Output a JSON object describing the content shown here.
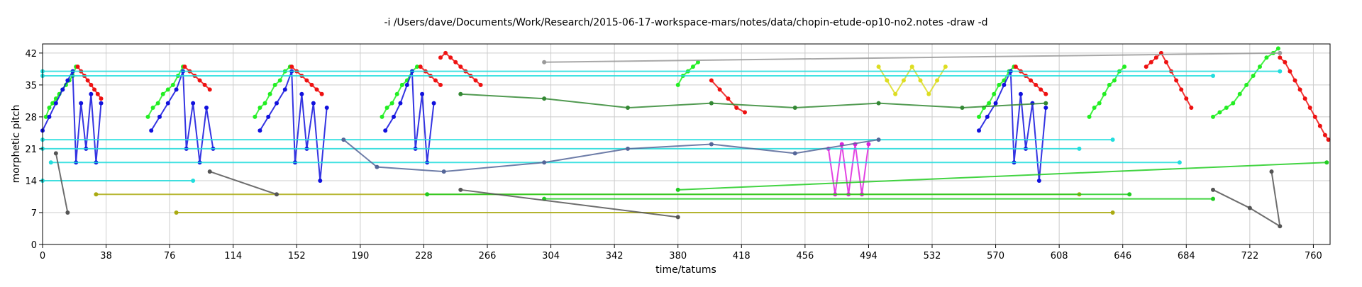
{
  "chart_data": {
    "type": "scatter",
    "title": "-i /Users/dave/Documents/Work/Research/2015-06-17-workspace-mars/notes/data/chopin-etude-op10-no2.notes -draw -d",
    "xlabel": "time/tatums",
    "ylabel": "morphetic pitch",
    "xlim": [
      0,
      770
    ],
    "ylim": [
      0,
      44
    ],
    "xticks": [
      0,
      38,
      76,
      114,
      152,
      190,
      228,
      266,
      304,
      342,
      380,
      418,
      456,
      494,
      532,
      570,
      608,
      646,
      684,
      722,
      760
    ],
    "yticks": [
      0,
      7,
      14,
      21,
      28,
      35,
      42
    ],
    "grid": true,
    "legend": "none",
    "point_colors": {
      "ascending": "#22ee22",
      "descending": "#ee1111",
      "bass": "#1111dd",
      "sustained": "#22dddd",
      "chromatic": "#dd22dd",
      "inner": "#aaaa11",
      "misc": "#555555"
    },
    "series": [
      {
        "color": "#22ee22",
        "points": [
          [
            2,
            28
          ],
          [
            4,
            30
          ],
          [
            6,
            31
          ],
          [
            8,
            32
          ],
          [
            10,
            33
          ],
          [
            12,
            34
          ],
          [
            14,
            35
          ],
          [
            16,
            36
          ],
          [
            18,
            37
          ],
          [
            20,
            39
          ]
        ]
      },
      {
        "color": "#ee1111",
        "points": [
          [
            21,
            39
          ],
          [
            23,
            38
          ],
          [
            25,
            37
          ],
          [
            27,
            36
          ],
          [
            29,
            35
          ],
          [
            31,
            34
          ],
          [
            33,
            33
          ],
          [
            35,
            32
          ]
        ]
      },
      {
        "color": "#1111dd",
        "points": [
          [
            0,
            25
          ],
          [
            4,
            28
          ],
          [
            8,
            31
          ],
          [
            12,
            34
          ],
          [
            15,
            36
          ],
          [
            18,
            38
          ],
          [
            20,
            18
          ],
          [
            23,
            31
          ],
          [
            26,
            21
          ],
          [
            29,
            33
          ],
          [
            32,
            18
          ],
          [
            35,
            31
          ]
        ]
      },
      {
        "color": "#22ee22",
        "points": [
          [
            63,
            28
          ],
          [
            66,
            30
          ],
          [
            69,
            31
          ],
          [
            72,
            33
          ],
          [
            75,
            34
          ],
          [
            78,
            35
          ],
          [
            81,
            37
          ],
          [
            84,
            39
          ]
        ]
      },
      {
        "color": "#ee1111",
        "points": [
          [
            85,
            39
          ],
          [
            88,
            38
          ],
          [
            91,
            37
          ],
          [
            94,
            36
          ],
          [
            97,
            35
          ],
          [
            100,
            34
          ]
        ]
      },
      {
        "color": "#1111dd",
        "points": [
          [
            65,
            25
          ],
          [
            70,
            28
          ],
          [
            75,
            31
          ],
          [
            80,
            34
          ],
          [
            84,
            38
          ],
          [
            86,
            21
          ],
          [
            90,
            31
          ],
          [
            94,
            18
          ],
          [
            98,
            30
          ],
          [
            102,
            21
          ]
        ]
      },
      {
        "color": "#22ee22",
        "points": [
          [
            127,
            28
          ],
          [
            130,
            30
          ],
          [
            133,
            31
          ],
          [
            136,
            33
          ],
          [
            139,
            35
          ],
          [
            142,
            36
          ],
          [
            145,
            38
          ],
          [
            148,
            39
          ]
        ]
      },
      {
        "color": "#ee1111",
        "points": [
          [
            149,
            39
          ],
          [
            152,
            38
          ],
          [
            155,
            37
          ],
          [
            158,
            36
          ],
          [
            161,
            35
          ],
          [
            164,
            34
          ],
          [
            167,
            33
          ]
        ]
      },
      {
        "color": "#1111dd",
        "points": [
          [
            130,
            25
          ],
          [
            135,
            28
          ],
          [
            140,
            31
          ],
          [
            145,
            34
          ],
          [
            149,
            38
          ],
          [
            151,
            18
          ],
          [
            155,
            33
          ],
          [
            158,
            21
          ],
          [
            162,
            31
          ],
          [
            166,
            14
          ],
          [
            170,
            30
          ]
        ]
      },
      {
        "color": "#22ee22",
        "points": [
          [
            203,
            28
          ],
          [
            206,
            30
          ],
          [
            209,
            31
          ],
          [
            212,
            33
          ],
          [
            215,
            35
          ],
          [
            218,
            36
          ],
          [
            221,
            38
          ],
          [
            224,
            39
          ]
        ]
      },
      {
        "color": "#ee1111",
        "points": [
          [
            226,
            39
          ],
          [
            229,
            38
          ],
          [
            232,
            37
          ],
          [
            235,
            36
          ],
          [
            238,
            35
          ]
        ]
      },
      {
        "color": "#ee1111",
        "points": [
          [
            238,
            41
          ],
          [
            241,
            42
          ],
          [
            244,
            41
          ],
          [
            247,
            40
          ],
          [
            250,
            39
          ],
          [
            253,
            38
          ],
          [
            256,
            37
          ],
          [
            259,
            36
          ],
          [
            262,
            35
          ]
        ]
      },
      {
        "color": "#1111dd",
        "points": [
          [
            205,
            25
          ],
          [
            210,
            28
          ],
          [
            214,
            31
          ],
          [
            218,
            35
          ],
          [
            221,
            38
          ],
          [
            223,
            21
          ],
          [
            227,
            33
          ],
          [
            230,
            18
          ],
          [
            234,
            31
          ]
        ]
      },
      {
        "color": "#22ee22",
        "points": [
          [
            380,
            35
          ],
          [
            383,
            37
          ],
          [
            386,
            38
          ],
          [
            389,
            39
          ],
          [
            392,
            40
          ]
        ]
      },
      {
        "color": "#ee1111",
        "points": [
          [
            400,
            36
          ],
          [
            405,
            34
          ],
          [
            410,
            32
          ],
          [
            415,
            30
          ],
          [
            420,
            29
          ]
        ]
      },
      {
        "color": "#dd22dd",
        "points": [
          [
            470,
            21
          ],
          [
            474,
            11
          ],
          [
            478,
            22
          ],
          [
            482,
            11
          ],
          [
            486,
            22
          ],
          [
            490,
            11
          ],
          [
            494,
            22
          ]
        ]
      },
      {
        "color": "#dddd22",
        "points": [
          [
            500,
            39
          ],
          [
            505,
            36
          ],
          [
            510,
            33
          ],
          [
            515,
            36
          ],
          [
            520,
            39
          ],
          [
            525,
            36
          ],
          [
            530,
            33
          ],
          [
            535,
            36
          ],
          [
            540,
            39
          ]
        ]
      },
      {
        "color": "#22ee22",
        "points": [
          [
            560,
            28
          ],
          [
            563,
            30
          ],
          [
            566,
            31
          ],
          [
            569,
            33
          ],
          [
            572,
            35
          ],
          [
            575,
            36
          ],
          [
            578,
            38
          ],
          [
            581,
            39
          ]
        ]
      },
      {
        "color": "#ee1111",
        "points": [
          [
            582,
            39
          ],
          [
            585,
            38
          ],
          [
            588,
            37
          ],
          [
            591,
            36
          ],
          [
            594,
            35
          ],
          [
            597,
            34
          ],
          [
            600,
            33
          ]
        ]
      },
      {
        "color": "#1111dd",
        "points": [
          [
            560,
            25
          ],
          [
            565,
            28
          ],
          [
            570,
            31
          ],
          [
            575,
            35
          ],
          [
            579,
            38
          ],
          [
            581,
            18
          ],
          [
            585,
            33
          ],
          [
            588,
            21
          ],
          [
            592,
            31
          ],
          [
            596,
            14
          ],
          [
            600,
            30
          ]
        ]
      },
      {
        "color": "#22ee22",
        "points": [
          [
            626,
            28
          ],
          [
            629,
            30
          ],
          [
            632,
            31
          ],
          [
            635,
            33
          ],
          [
            638,
            35
          ],
          [
            641,
            36
          ],
          [
            644,
            38
          ],
          [
            647,
            39
          ]
        ]
      },
      {
        "color": "#ee1111",
        "points": [
          [
            660,
            39
          ],
          [
            663,
            40
          ],
          [
            666,
            41
          ],
          [
            669,
            42
          ],
          [
            672,
            40
          ],
          [
            675,
            38
          ],
          [
            678,
            36
          ],
          [
            681,
            34
          ],
          [
            684,
            32
          ],
          [
            687,
            30
          ]
        ]
      },
      {
        "color": "#22ee22",
        "points": [
          [
            700,
            28
          ],
          [
            704,
            29
          ],
          [
            708,
            30
          ],
          [
            712,
            31
          ],
          [
            716,
            33
          ],
          [
            720,
            35
          ],
          [
            724,
            37
          ],
          [
            728,
            39
          ],
          [
            732,
            41
          ],
          [
            736,
            42
          ],
          [
            739,
            43
          ]
        ]
      },
      {
        "color": "#ee1111",
        "points": [
          [
            740,
            41
          ],
          [
            743,
            40
          ],
          [
            746,
            38
          ],
          [
            749,
            36
          ],
          [
            752,
            34
          ],
          [
            755,
            32
          ],
          [
            758,
            30
          ],
          [
            761,
            28
          ],
          [
            764,
            26
          ],
          [
            767,
            24
          ],
          [
            769,
            23
          ]
        ]
      },
      {
        "color": "#22dddd",
        "points": [
          [
            0,
            38
          ],
          [
            740,
            38
          ]
        ]
      },
      {
        "color": "#22dddd",
        "points": [
          [
            0,
            37
          ],
          [
            700,
            37
          ]
        ]
      },
      {
        "color": "#22dddd",
        "points": [
          [
            0,
            14
          ],
          [
            90,
            14
          ]
        ]
      },
      {
        "color": "#22dddd",
        "points": [
          [
            0,
            23
          ],
          [
            640,
            23
          ]
        ]
      },
      {
        "color": "#22dddd",
        "points": [
          [
            0,
            21
          ],
          [
            620,
            21
          ]
        ]
      },
      {
        "color": "#22dddd",
        "points": [
          [
            5,
            18
          ],
          [
            680,
            18
          ]
        ]
      },
      {
        "color": "#aaaa11",
        "points": [
          [
            32,
            11
          ],
          [
            620,
            11
          ]
        ]
      },
      {
        "color": "#aaaa11",
        "points": [
          [
            80,
            7
          ],
          [
            640,
            7
          ]
        ]
      },
      {
        "color": "#22cc22",
        "points": [
          [
            230,
            11
          ],
          [
            650,
            11
          ]
        ]
      },
      {
        "color": "#22cc22",
        "points": [
          [
            300,
            10
          ],
          [
            700,
            10
          ]
        ]
      },
      {
        "color": "#22cc22",
        "points": [
          [
            380,
            12
          ],
          [
            768,
            18
          ]
        ]
      },
      {
        "color": "#999999",
        "points": [
          [
            300,
            40
          ],
          [
            740,
            42
          ]
        ]
      },
      {
        "color": "#555555",
        "points": [
          [
            15,
            7
          ],
          [
            8,
            20
          ]
        ]
      },
      {
        "color": "#555555",
        "points": [
          [
            100,
            16
          ],
          [
            140,
            11
          ]
        ]
      },
      {
        "color": "#555555",
        "points": [
          [
            250,
            12
          ],
          [
            380,
            6
          ]
        ]
      },
      {
        "color": "#555555",
        "points": [
          [
            700,
            12
          ],
          [
            722,
            8
          ],
          [
            740,
            4
          ],
          [
            735,
            16
          ]
        ]
      },
      {
        "color": "#556699",
        "points": [
          [
            180,
            23
          ],
          [
            200,
            17
          ],
          [
            240,
            16
          ],
          [
            300,
            18
          ],
          [
            350,
            21
          ],
          [
            400,
            22
          ],
          [
            450,
            20
          ],
          [
            500,
            23
          ]
        ]
      },
      {
        "color": "#338833",
        "points": [
          [
            250,
            33
          ],
          [
            300,
            32
          ],
          [
            350,
            30
          ],
          [
            400,
            31
          ],
          [
            450,
            30
          ],
          [
            500,
            31
          ],
          [
            550,
            30
          ],
          [
            600,
            31
          ]
        ]
      }
    ]
  }
}
